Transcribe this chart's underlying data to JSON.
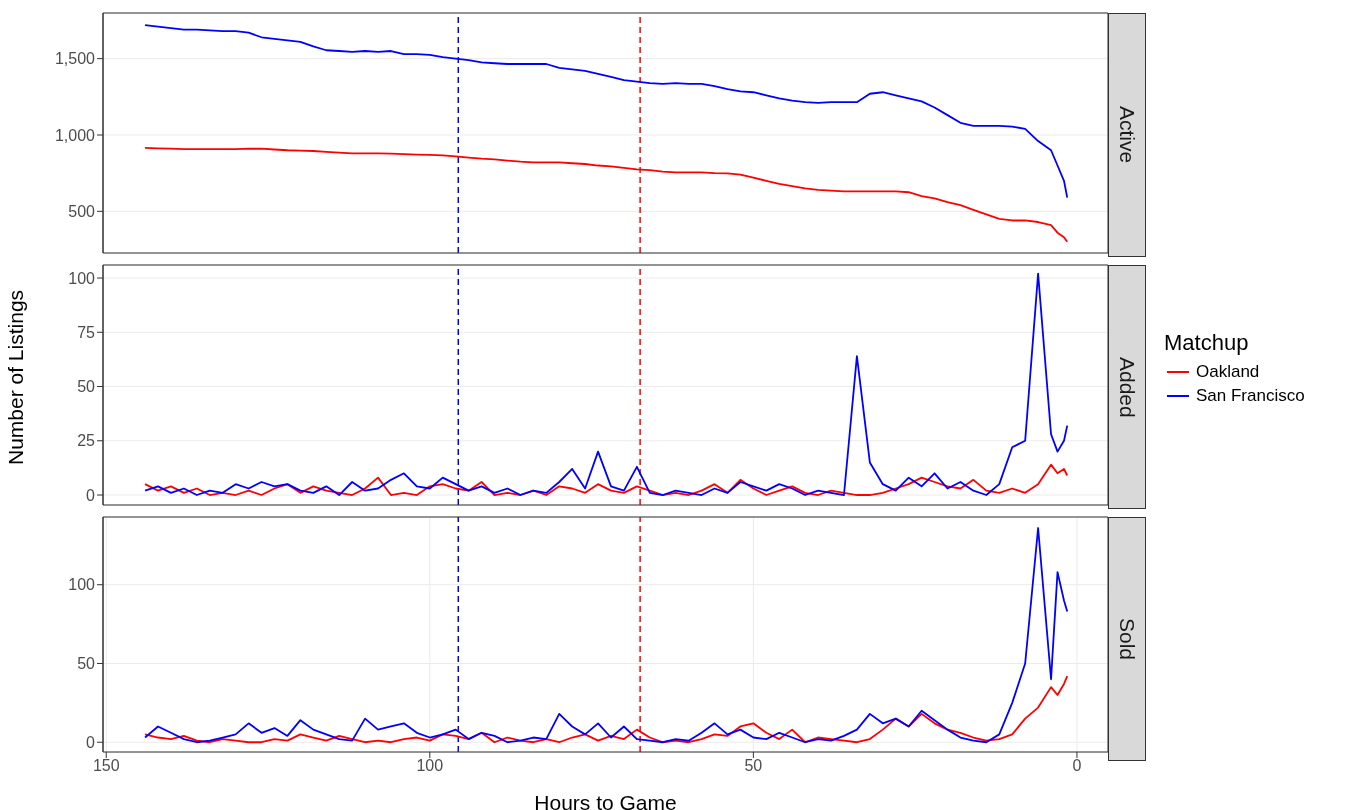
{
  "chart_data": [
    {
      "type": "line",
      "title": "Active",
      "x": [
        144,
        142,
        140,
        138,
        136,
        134,
        132,
        130,
        128,
        126,
        124,
        122,
        120,
        118,
        116,
        114,
        112,
        110,
        108,
        106,
        104,
        102,
        100,
        98,
        96,
        94,
        92,
        90,
        88,
        86,
        84,
        82,
        80,
        78,
        76,
        74,
        72,
        70,
        68,
        66,
        64,
        62,
        60,
        58,
        56,
        54,
        52,
        50,
        48,
        46,
        44,
        42,
        40,
        38,
        36,
        34,
        32,
        30,
        28,
        26,
        24,
        22,
        20,
        18,
        16,
        14,
        12,
        10,
        8,
        6,
        4,
        3,
        2,
        1.5
      ],
      "series": [
        {
          "color": "#ff0000",
          "values": [
            915,
            912,
            910,
            908,
            908,
            908,
            908,
            908,
            910,
            910,
            905,
            900,
            898,
            895,
            890,
            885,
            880,
            880,
            880,
            878,
            875,
            872,
            870,
            866,
            860,
            852,
            845,
            840,
            832,
            825,
            820,
            820,
            820,
            815,
            810,
            800,
            795,
            785,
            775,
            770,
            760,
            755,
            755,
            755,
            750,
            748,
            740,
            720,
            700,
            680,
            665,
            650,
            640,
            635,
            630,
            630,
            630,
            630,
            630,
            625,
            600,
            585,
            560,
            540,
            510,
            480,
            450,
            440,
            440,
            430,
            410,
            360,
            330,
            300
          ]
        },
        {
          "color": "#0000ff",
          "values": [
            1720,
            1710,
            1700,
            1690,
            1690,
            1685,
            1680,
            1680,
            1670,
            1640,
            1630,
            1620,
            1610,
            1580,
            1555,
            1550,
            1545,
            1550,
            1545,
            1550,
            1530,
            1530,
            1525,
            1510,
            1500,
            1490,
            1475,
            1470,
            1465,
            1465,
            1465,
            1465,
            1440,
            1430,
            1420,
            1400,
            1380,
            1360,
            1350,
            1340,
            1335,
            1340,
            1335,
            1335,
            1320,
            1300,
            1285,
            1280,
            1260,
            1240,
            1225,
            1215,
            1210,
            1215,
            1215,
            1215,
            1270,
            1280,
            1260,
            1240,
            1220,
            1180,
            1130,
            1080,
            1060,
            1060,
            1060,
            1055,
            1040,
            960,
            900,
            800,
            700,
            590
          ]
        }
      ],
      "xlim": [
        150.5,
        -4.8
      ],
      "xticks": [
        150,
        100,
        50,
        0
      ],
      "ylim": [
        227,
        1799
      ],
      "yticks": [
        {
          "value": 500,
          "label": "500"
        },
        {
          "value": 1000,
          "label": "1,000"
        },
        {
          "value": 1500,
          "label": "1,500"
        }
      ],
      "grid": true,
      "legend": false,
      "tick_labels": "y",
      "line_style": "solid",
      "marker": "none",
      "ref_lines": [
        {
          "axis": "x",
          "value": 95.6,
          "color": "#0000ff",
          "line_style": "dashed"
        },
        {
          "axis": "x",
          "value": 67.5,
          "color": "#ff0000",
          "line_style": "dashed"
        }
      ]
    },
    {
      "type": "line",
      "title": "Added",
      "ylabel": "Number of Listings",
      "legend_title": "Matchup",
      "x": [
        144,
        142,
        140,
        138,
        136,
        134,
        132,
        130,
        128,
        126,
        124,
        122,
        120,
        118,
        116,
        114,
        112,
        110,
        108,
        106,
        104,
        102,
        100,
        98,
        96,
        94,
        92,
        90,
        88,
        86,
        84,
        82,
        80,
        78,
        76,
        74,
        72,
        70,
        68,
        66,
        64,
        62,
        60,
        58,
        56,
        54,
        52,
        50,
        48,
        46,
        44,
        42,
        40,
        38,
        36,
        34,
        32,
        30,
        28,
        26,
        24,
        22,
        20,
        18,
        16,
        14,
        12,
        10,
        8,
        6,
        4,
        3,
        2,
        1.5
      ],
      "series": [
        {
          "name": "Oakland",
          "color": "#ff0000",
          "values": [
            5,
            2,
            4,
            1,
            3,
            0,
            1,
            0,
            2,
            0,
            3,
            5,
            1,
            4,
            2,
            1,
            0,
            3,
            8,
            0,
            1,
            0,
            4,
            5,
            3,
            2,
            6,
            0,
            1,
            0,
            2,
            0,
            4,
            3,
            1,
            5,
            2,
            1,
            4,
            2,
            0,
            1,
            0,
            2,
            5,
            1,
            7,
            3,
            0,
            2,
            4,
            1,
            0,
            2,
            1,
            0,
            0,
            1,
            3,
            5,
            8,
            6,
            4,
            3,
            7,
            2,
            1,
            3,
            1,
            5,
            14,
            10,
            12,
            9
          ]
        },
        {
          "name": "San Francisco",
          "color": "#0000ff",
          "values": [
            2,
            4,
            1,
            3,
            0,
            2,
            1,
            5,
            3,
            6,
            4,
            5,
            2,
            1,
            4,
            0,
            6,
            2,
            3,
            7,
            10,
            4,
            3,
            8,
            5,
            2,
            4,
            1,
            3,
            0,
            2,
            1,
            6,
            12,
            3,
            20,
            4,
            2,
            13,
            1,
            0,
            2,
            1,
            0,
            3,
            1,
            6,
            4,
            2,
            5,
            3,
            0,
            2,
            1,
            0,
            64,
            15,
            5,
            2,
            8,
            4,
            10,
            3,
            6,
            2,
            0,
            5,
            22,
            25,
            102,
            28,
            20,
            25,
            32
          ]
        }
      ],
      "xlim": [
        150.5,
        -4.8
      ],
      "xticks": [
        150,
        100,
        50,
        0
      ],
      "ylim": [
        -4.6,
        106
      ],
      "yticks": [
        0,
        25,
        50,
        75,
        100
      ],
      "grid": true,
      "legend": "right",
      "tick_labels": "y",
      "line_style": "solid",
      "marker": "none",
      "ref_lines": [
        {
          "axis": "x",
          "value": 95.6,
          "color": "#0000ff",
          "line_style": "dashed"
        },
        {
          "axis": "x",
          "value": 67.5,
          "color": "#ff0000",
          "line_style": "dashed"
        }
      ]
    },
    {
      "type": "line",
      "title": "Sold",
      "xlabel": "Hours to Game",
      "x": [
        144,
        142,
        140,
        138,
        136,
        134,
        132,
        130,
        128,
        126,
        124,
        122,
        120,
        118,
        116,
        114,
        112,
        110,
        108,
        106,
        104,
        102,
        100,
        98,
        96,
        94,
        92,
        90,
        88,
        86,
        84,
        82,
        80,
        78,
        76,
        74,
        72,
        70,
        68,
        66,
        64,
        62,
        60,
        58,
        56,
        54,
        52,
        50,
        48,
        46,
        44,
        42,
        40,
        38,
        36,
        34,
        32,
        30,
        28,
        26,
        24,
        22,
        20,
        18,
        16,
        14,
        12,
        10,
        8,
        6,
        4,
        3,
        2,
        1.5
      ],
      "series": [
        {
          "color": "#ff0000",
          "values": [
            5,
            3,
            2,
            4,
            1,
            0,
            2,
            1,
            0,
            0,
            2,
            1,
            5,
            3,
            1,
            4,
            2,
            0,
            1,
            0,
            2,
            3,
            1,
            5,
            4,
            2,
            6,
            0,
            3,
            1,
            0,
            2,
            0,
            3,
            5,
            1,
            4,
            2,
            8,
            3,
            0,
            1,
            0,
            2,
            5,
            4,
            10,
            12,
            6,
            2,
            8,
            0,
            3,
            2,
            1,
            0,
            2,
            8,
            15,
            10,
            18,
            12,
            8,
            6,
            3,
            1,
            2,
            5,
            15,
            22,
            35,
            30,
            37,
            42
          ]
        },
        {
          "color": "#0000ff",
          "values": [
            3,
            10,
            6,
            2,
            0,
            1,
            3,
            5,
            12,
            6,
            9,
            4,
            14,
            8,
            5,
            2,
            1,
            15,
            8,
            10,
            12,
            6,
            3,
            5,
            8,
            2,
            6,
            4,
            0,
            1,
            3,
            2,
            18,
            10,
            5,
            12,
            3,
            10,
            2,
            1,
            0,
            2,
            1,
            6,
            12,
            5,
            8,
            3,
            2,
            6,
            3,
            0,
            2,
            1,
            4,
            8,
            18,
            12,
            15,
            10,
            20,
            14,
            8,
            3,
            1,
            0,
            5,
            25,
            50,
            136,
            40,
            108,
            90,
            83
          ]
        }
      ],
      "xlim": [
        150.5,
        -4.8
      ],
      "xticks": [
        150,
        100,
        50,
        0
      ],
      "ylim": [
        -6.2,
        143
      ],
      "yticks": [
        0,
        50,
        100
      ],
      "grid": true,
      "legend": false,
      "line_style": "solid",
      "marker": "none",
      "ref_lines": [
        {
          "axis": "x",
          "value": 95.6,
          "color": "#0000ff",
          "line_style": "dashed"
        },
        {
          "axis": "x",
          "value": 67.5,
          "color": "#ff0000",
          "line_style": "dashed"
        }
      ]
    }
  ]
}
